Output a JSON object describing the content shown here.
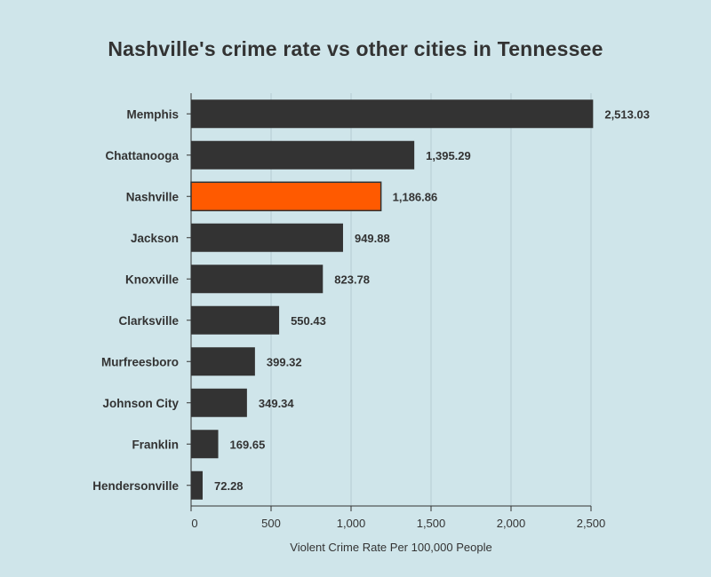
{
  "chart_data": {
    "type": "bar",
    "orientation": "horizontal",
    "title": "Nashville's crime rate vs other cities in Tennessee",
    "xlabel": "Violent Crime Rate Per 100,000 People",
    "ylabel": "",
    "xlim": [
      0,
      2500
    ],
    "xticks": [
      0,
      500,
      1000,
      1500,
      2000,
      2500
    ],
    "xtick_labels": [
      "0",
      "500",
      "1,000",
      "1,500",
      "2,000",
      "2,500"
    ],
    "grid": "vertical",
    "categories": [
      "Memphis",
      "Chattanooga",
      "Nashville",
      "Jackson",
      "Knoxville",
      "Clarksville",
      "Murfreesboro",
      "Johnson City",
      "Franklin",
      "Hendersonville"
    ],
    "values": [
      2513.03,
      1395.29,
      1186.86,
      949.88,
      823.78,
      550.43,
      399.32,
      349.34,
      169.65,
      72.28
    ],
    "value_labels": [
      "2,513.03",
      "1,395.29",
      "1,186.86",
      "949.88",
      "823.78",
      "550.43",
      "399.32",
      "349.34",
      "169.65",
      "72.28"
    ],
    "highlight": "Nashville",
    "colors": {
      "bar": "#333333",
      "highlight": "#ff5a00",
      "background": "#cfe5ea",
      "grid": "#b4ccd2",
      "text": "#333333"
    }
  }
}
